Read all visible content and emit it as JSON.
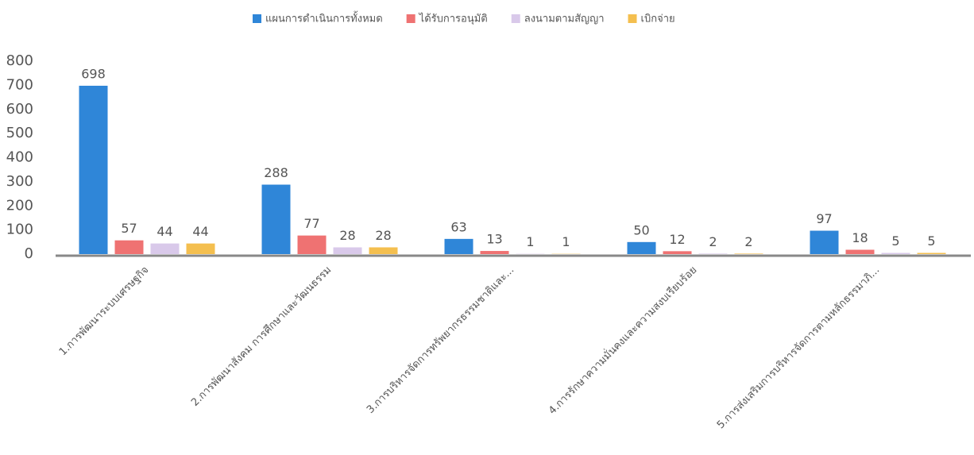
{
  "chart_data": {
    "type": "bar",
    "categories": [
      "1.การพัฒนาระบบเศรษฐกิจ",
      "2.การพัฒนาสังคม การศึกษาและวัฒนธรรม",
      "3.การบริหารจัดการทรัพยากรธรรมชาติและ...",
      "4.การรักษาความมั่นคงและความสงบเรียบร้อย",
      "5.การส่งเสริมการบริหารจัดการตามหลักธรรมาภิ..."
    ],
    "series": [
      {
        "name": "แผนการดำเนินการทั้งหมด",
        "color": "#2f86d8",
        "values": [
          698,
          288,
          63,
          50,
          97
        ]
      },
      {
        "name": "ได้รับการอนุมัติ",
        "color": "#ef7272",
        "values": [
          57,
          77,
          13,
          12,
          18
        ]
      },
      {
        "name": "ลงนามตามสัญญา",
        "color": "#d9c9ea",
        "values": [
          44,
          28,
          1,
          2,
          5
        ]
      },
      {
        "name": "เบิกจ่าย",
        "color": "#f4bf4f",
        "values": [
          44,
          28,
          1,
          2,
          5
        ]
      }
    ],
    "ylim": [
      0,
      800
    ],
    "yticks": [
      0,
      100,
      200,
      300,
      400,
      500,
      600,
      700,
      800
    ],
    "grid": false,
    "legend": "top"
  }
}
